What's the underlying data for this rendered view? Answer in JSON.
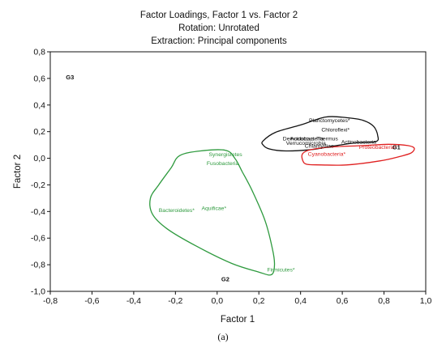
{
  "chart_data": {
    "type": "scatter",
    "title_lines": [
      "Factor Loadings, Factor 1 vs. Factor 2",
      "Rotation: Unrotated",
      "Extraction: Principal components"
    ],
    "xlabel": "Factor 1",
    "ylabel": "Factor 2",
    "xlim": [
      -0.8,
      1.0
    ],
    "ylim": [
      -1.0,
      0.8
    ],
    "x_ticks": [
      "-0,8",
      "-0,6",
      "-0,4",
      "-0,2",
      "0,0",
      "0,2",
      "0,4",
      "0,6",
      "0,8",
      "1,0"
    ],
    "y_ticks": [
      "-1,0",
      "-0,8",
      "-0,6",
      "-0,4",
      "-0,2",
      "0,0",
      "0,2",
      "0,4",
      "0,6",
      "0,8"
    ],
    "grid": false,
    "points": [
      {
        "label": "Planctomycetes*",
        "x": 0.44,
        "y": 0.285,
        "color": "#111111"
      },
      {
        "label": "Chloroflexi*",
        "x": 0.5,
        "y": 0.215,
        "color": "#111111"
      },
      {
        "label": "Deinococcus-Thermus",
        "x": 0.315,
        "y": 0.15,
        "color": "#111111"
      },
      {
        "label": "Acidobacteria",
        "x": 0.35,
        "y": 0.15,
        "color": "#111111"
      },
      {
        "label": "Verrucomicrobia",
        "x": 0.33,
        "y": 0.115,
        "color": "#111111"
      },
      {
        "label": "Chlamydiae",
        "x": 0.42,
        "y": 0.095,
        "color": "#111111"
      },
      {
        "label": "Actinobacteria",
        "x": 0.595,
        "y": 0.125,
        "color": "#111111"
      },
      {
        "label": "Cyanobacteria*",
        "x": 0.435,
        "y": 0.035,
        "color": "#e02020"
      },
      {
        "label": "Proteobacteria*",
        "x": 0.68,
        "y": 0.085,
        "color": "#e02020"
      },
      {
        "label": "Synergistetes",
        "x": -0.04,
        "y": 0.03,
        "color": "#2e9a3e"
      },
      {
        "label": "Fusobacteria",
        "x": -0.05,
        "y": -0.035,
        "color": "#2e9a3e"
      },
      {
        "label": "Bacteroidetes*",
        "x": -0.28,
        "y": -0.39,
        "color": "#2e9a3e"
      },
      {
        "label": "Aquificae*",
        "x": -0.075,
        "y": -0.375,
        "color": "#2e9a3e"
      },
      {
        "label": "Firmicutes*",
        "x": 0.24,
        "y": -0.835,
        "color": "#2e9a3e"
      }
    ],
    "group_labels": [
      {
        "label": "G1",
        "x": 0.84,
        "y": 0.085,
        "color": "#111111"
      },
      {
        "label": "G2",
        "x": 0.02,
        "y": -0.905,
        "color": "#111111"
      },
      {
        "label": "G3",
        "x": -0.725,
        "y": 0.61,
        "color": "#111111"
      }
    ],
    "outlines": [
      {
        "group": "G1",
        "color": "#111111",
        "path": [
          [
            0.22,
            0.13
          ],
          [
            0.28,
            0.195
          ],
          [
            0.4,
            0.25
          ],
          [
            0.52,
            0.31
          ],
          [
            0.62,
            0.305
          ],
          [
            0.7,
            0.285
          ],
          [
            0.75,
            0.24
          ],
          [
            0.77,
            0.17
          ],
          [
            0.76,
            0.125
          ],
          [
            0.66,
            0.115
          ],
          [
            0.55,
            0.09
          ],
          [
            0.45,
            0.065
          ],
          [
            0.33,
            0.055
          ],
          [
            0.25,
            0.07
          ],
          [
            0.22,
            0.1
          ]
        ]
      },
      {
        "group": "G1",
        "color": "#e02020",
        "path": [
          [
            0.41,
            0.035
          ],
          [
            0.45,
            0.065
          ],
          [
            0.55,
            0.085
          ],
          [
            0.7,
            0.095
          ],
          [
            0.82,
            0.105
          ],
          [
            0.915,
            0.095
          ],
          [
            0.945,
            0.075
          ],
          [
            0.93,
            0.04
          ],
          [
            0.88,
            0.015
          ],
          [
            0.78,
            -0.02
          ],
          [
            0.62,
            -0.05
          ],
          [
            0.5,
            -0.05
          ],
          [
            0.43,
            -0.045
          ],
          [
            0.41,
            -0.015
          ]
        ]
      },
      {
        "group": "G2",
        "color": "#2e9a3e",
        "path": [
          [
            -0.18,
            0.02
          ],
          [
            -0.08,
            0.055
          ],
          [
            0.04,
            0.06
          ],
          [
            0.085,
            0.0
          ],
          [
            0.12,
            -0.1
          ],
          [
            0.17,
            -0.25
          ],
          [
            0.23,
            -0.47
          ],
          [
            0.265,
            -0.68
          ],
          [
            0.275,
            -0.8
          ],
          [
            0.26,
            -0.875
          ],
          [
            0.2,
            -0.855
          ],
          [
            0.07,
            -0.79
          ],
          [
            -0.1,
            -0.66
          ],
          [
            -0.24,
            -0.53
          ],
          [
            -0.31,
            -0.42
          ],
          [
            -0.32,
            -0.3
          ],
          [
            -0.28,
            -0.2
          ],
          [
            -0.22,
            -0.07
          ]
        ]
      }
    ]
  },
  "caption": "(a)"
}
